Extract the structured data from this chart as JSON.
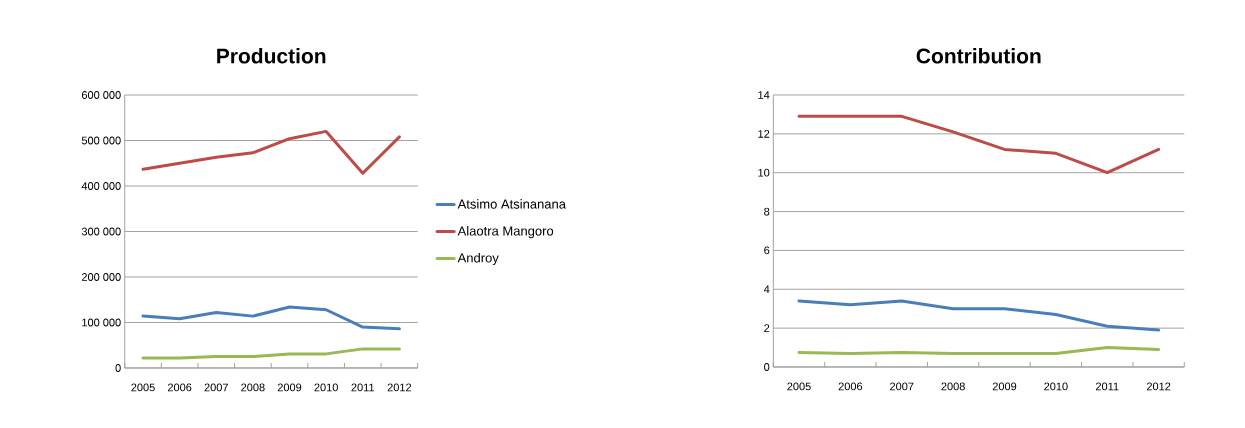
{
  "chart_data": [
    {
      "type": "line",
      "title": "Production",
      "categories": [
        "2005",
        "2006",
        "2007",
        "2008",
        "2009",
        "2010",
        "2011",
        "2012"
      ],
      "series": [
        {
          "name": "Atsimo Atsinanana",
          "color": "#4a7ebb",
          "values": [
            114000,
            108000,
            122000,
            114000,
            134000,
            128000,
            90000,
            86000
          ]
        },
        {
          "name": "Alaotra Mangoro",
          "color": "#be4b48",
          "values": [
            437000,
            450000,
            463000,
            473000,
            504000,
            520000,
            428000,
            508000
          ]
        },
        {
          "name": "Androy",
          "color": "#98b954",
          "values": [
            22000,
            22000,
            25000,
            25000,
            31000,
            31000,
            42000,
            42000
          ]
        }
      ],
      "ylim": [
        0,
        600000
      ],
      "yticks": [
        0,
        {
          "value": 100000,
          "label": "100 000"
        },
        {
          "value": 200000,
          "label": "200 000"
        },
        {
          "value": 300000,
          "label": "300 000"
        },
        {
          "value": 400000,
          "label": "400 000"
        },
        {
          "value": 500000,
          "label": "500 000"
        },
        {
          "value": 600000,
          "label": "600 000"
        }
      ],
      "grid": "y",
      "legend": "right"
    },
    {
      "type": "line",
      "title": "Contribution",
      "categories": [
        "2005",
        "2006",
        "2007",
        "2008",
        "2009",
        "2010",
        "2011",
        "2012"
      ],
      "series": [
        {
          "color": "#4a7ebb",
          "values": [
            3.4,
            3.2,
            3.4,
            3.0,
            3.0,
            2.7,
            2.1,
            1.9
          ]
        },
        {
          "color": "#be4b48",
          "values": [
            12.9,
            12.9,
            12.9,
            12.1,
            11.2,
            11.0,
            10.0,
            11.2
          ]
        },
        {
          "color": "#98b954",
          "values": [
            0.75,
            0.7,
            0.75,
            0.7,
            0.7,
            0.7,
            1.0,
            0.9
          ]
        }
      ],
      "ylim": [
        0,
        14
      ],
      "yticks": [
        0,
        2,
        4,
        6,
        8,
        10,
        12,
        14
      ],
      "grid": "y"
    }
  ]
}
